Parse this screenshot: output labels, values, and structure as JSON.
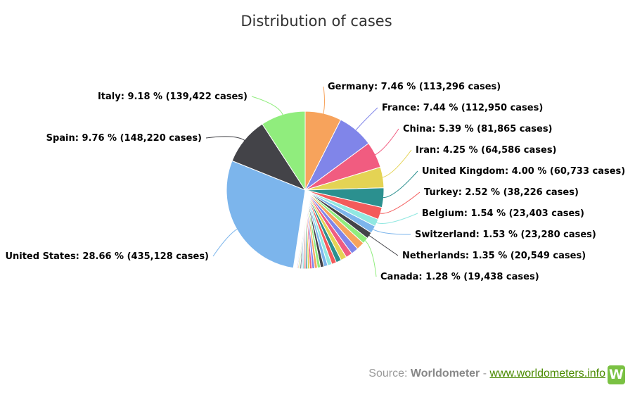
{
  "chart_data": {
    "type": "pie",
    "title": "Distribution of cases",
    "slices": [
      {
        "name": "United States",
        "label": "United States: 28.66 % (435,128 cases)",
        "value": 28.66,
        "color": "#7cb5ec"
      },
      {
        "name": "Germany",
        "label": "Germany: 7.46 % (113,296 cases)",
        "value": 7.46,
        "color": "#f7a35c"
      },
      {
        "name": "France",
        "label": "France: 7.44 % (112,950 cases)",
        "value": 7.44,
        "color": "#8085e9"
      },
      {
        "name": "China",
        "label": "China: 5.39 % (81,865 cases)",
        "value": 5.39,
        "color": "#f15c80"
      },
      {
        "name": "Iran",
        "label": "Iran: 4.25 % (64,586 cases)",
        "value": 4.25,
        "color": "#e4d354"
      },
      {
        "name": "United Kingdom",
        "label": "United Kingdom: 4.00 % (60,733 cases)",
        "value": 4.0,
        "color": "#2b908f"
      },
      {
        "name": "Turkey",
        "label": "Turkey: 2.52 % (38,226 cases)",
        "value": 2.52,
        "color": "#f45b5b"
      },
      {
        "name": "Belgium",
        "label": "Belgium: 1.54 % (23,403 cases)",
        "value": 1.54,
        "color": "#91e8e1"
      },
      {
        "name": "Switzerland",
        "label": "Switzerland: 1.53 % (23,280 cases)",
        "value": 1.53,
        "color": "#7cb5ec"
      },
      {
        "name": "Netherlands",
        "label": "Netherlands: 1.35 % (20,549 cases)",
        "value": 1.35,
        "color": "#434348"
      },
      {
        "name": "Canada",
        "label": "Canada: 1.28 % (19,438 cases)",
        "value": 1.28,
        "color": "#90ed7d"
      },
      {
        "name": "Spain",
        "label": "Spain: 9.76 % (148,220 cases)",
        "value": 9.76,
        "color": "#434348"
      },
      {
        "name": "Italy",
        "label": "Italy: 9.18 % (139,422 cases)",
        "value": 9.18,
        "color": "#90ed7d"
      }
    ],
    "other_small_slices_total": 15.64,
    "other_small_slice_colors": [
      "#f7a35c",
      "#8085e9",
      "#f15c80",
      "#e4d354",
      "#2b908f",
      "#f45b5b",
      "#91e8e1",
      "#7cb5ec",
      "#434348",
      "#90ed7d"
    ]
  },
  "source": {
    "prefix": "Source: ",
    "name": "Worldometer",
    "separator": " - ",
    "url_text": "www.worldometers.info",
    "logo_letter": "W"
  }
}
